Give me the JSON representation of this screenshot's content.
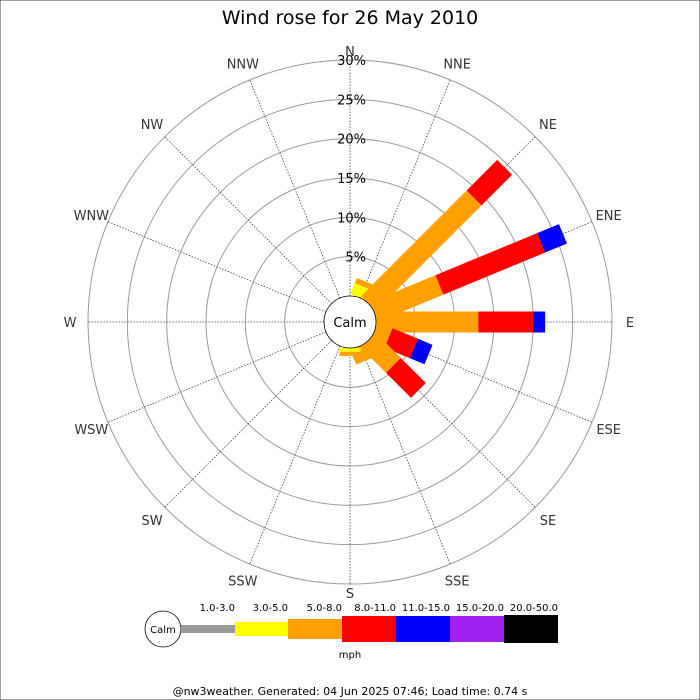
{
  "chart_data": {
    "type": "wind-rose",
    "title": "Wind rose for 26 May 2010",
    "radial_axis": {
      "min": 0,
      "max": 30,
      "ticks": [
        5,
        10,
        15,
        20,
        25,
        30
      ],
      "tick_labels": [
        "5%",
        "10%",
        "15%",
        "20%",
        "25%",
        "30%"
      ]
    },
    "directions": [
      "N",
      "NNE",
      "NE",
      "ENE",
      "E",
      "ESE",
      "SE",
      "SSE",
      "S",
      "SSW",
      "SW",
      "WSW",
      "W",
      "WNW",
      "NW",
      "NNW"
    ],
    "calm_label": "Calm",
    "speed_bins": [
      {
        "label": "1.0-3.0",
        "color": "#999999"
      },
      {
        "label": "3.0-5.0",
        "color": "#ffff00"
      },
      {
        "label": "5.0-8.0",
        "color": "#ffa000"
      },
      {
        "label": "8.0-11.0",
        "color": "#ff0000"
      },
      {
        "label": "11.0-15.0",
        "color": "#0000ff"
      },
      {
        "label": "15.0-20.0",
        "color": "#a020f0"
      },
      {
        "label": "20.0-50.0",
        "color": "#000000"
      }
    ],
    "unit": "mph",
    "series": [
      {
        "direction": "NNE",
        "cumulative_pct": [
          0,
          1.5,
          2.2,
          0,
          0,
          0,
          0
        ]
      },
      {
        "direction": "NE",
        "cumulative_pct": [
          0,
          0,
          19.0,
          24.5,
          0,
          0,
          0
        ]
      },
      {
        "direction": "ENE",
        "cumulative_pct": [
          0,
          0,
          9.0,
          23.0,
          26.0,
          0,
          0
        ]
      },
      {
        "direction": "E",
        "cumulative_pct": [
          0,
          0,
          13.0,
          20.0,
          21.5,
          0,
          0
        ]
      },
      {
        "direction": "ESE",
        "cumulative_pct": [
          0,
          0,
          2.0,
          5.5,
          7.5,
          0,
          0
        ]
      },
      {
        "direction": "SE",
        "cumulative_pct": [
          0,
          0,
          4.5,
          9.0,
          0,
          0,
          0
        ]
      },
      {
        "direction": "SSE",
        "cumulative_pct": [
          0,
          0,
          2.0,
          0,
          0,
          0,
          0
        ]
      },
      {
        "direction": "S",
        "cumulative_pct": [
          0,
          0.5,
          1.0,
          0,
          0,
          0,
          0
        ]
      },
      {
        "direction": "SSW",
        "cumulative_pct": [
          0,
          0,
          0,
          0,
          0,
          0,
          0
        ]
      },
      {
        "direction": "SW",
        "cumulative_pct": [
          0,
          0,
          0,
          0,
          0,
          0,
          0
        ]
      },
      {
        "direction": "WSW",
        "cumulative_pct": [
          0,
          0,
          0,
          0,
          0,
          0,
          0
        ]
      },
      {
        "direction": "W",
        "cumulative_pct": [
          0,
          0,
          0,
          0,
          0,
          0,
          0
        ]
      },
      {
        "direction": "WNW",
        "cumulative_pct": [
          0,
          0,
          0,
          0,
          0,
          0,
          0
        ]
      },
      {
        "direction": "NW",
        "cumulative_pct": [
          0,
          0,
          0,
          0,
          0,
          0,
          0
        ]
      },
      {
        "direction": "NNW",
        "cumulative_pct": [
          0,
          0,
          0,
          0,
          0,
          0,
          0
        ]
      },
      {
        "direction": "N",
        "cumulative_pct": [
          0,
          0,
          0,
          0,
          0,
          0,
          0
        ]
      }
    ],
    "special_bars": [
      {
        "direction_deg": 150,
        "cumulative_pct": [
          0,
          0,
          0,
          0,
          0,
          0,
          0
        ]
      }
    ],
    "footer": "@nw3weather. Generated: 04 Jun 2025 07:46; Load time: 0.74 s"
  }
}
